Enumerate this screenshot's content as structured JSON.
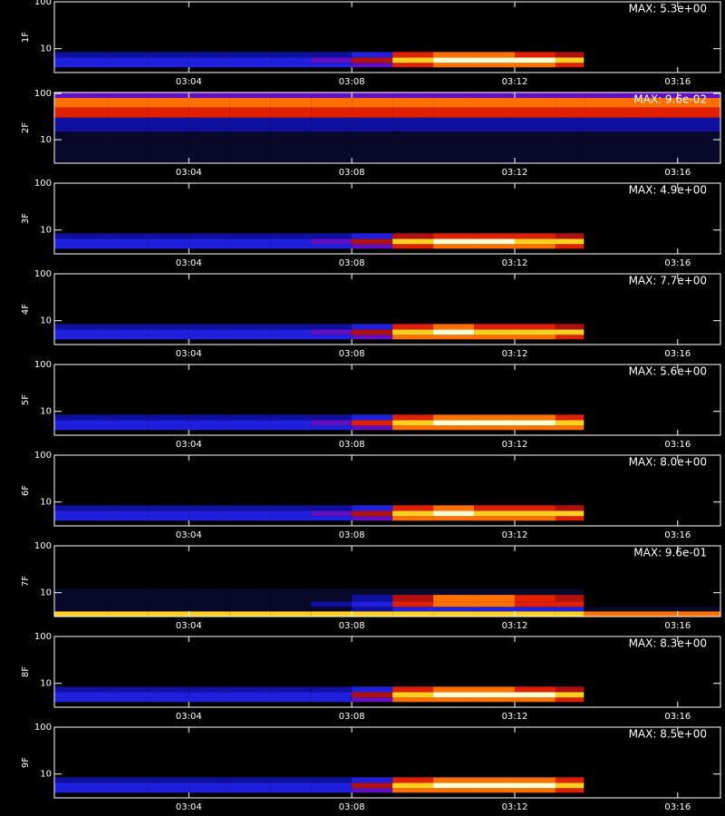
{
  "chart_data": [
    {
      "type": "heatmap",
      "ylabel": "1F",
      "annotation": "MAX: 5.3e+00",
      "log_y": true,
      "xlim": [
        0.7,
        17.05
      ],
      "xticks": [
        {
          "value": 4,
          "label": "03:04"
        },
        {
          "value": 8,
          "label": "03:08"
        },
        {
          "value": 12,
          "label": "03:12"
        },
        {
          "value": 16,
          "label": "03:16"
        }
      ],
      "ylim": [
        3.1,
        100
      ],
      "yticks": [
        10,
        100
      ],
      "xbins": [
        0.7,
        2,
        3,
        4,
        5,
        6,
        7,
        8,
        9,
        10,
        11,
        12,
        13,
        13.7,
        17.05
      ],
      "ybins": [
        4,
        5,
        6.5,
        8.5
      ],
      "values": [
        [
          3,
          3,
          3,
          3,
          3,
          3,
          3,
          4,
          6,
          7,
          7,
          7,
          6,
          0
        ],
        [
          3,
          3,
          3,
          3,
          3,
          3,
          4,
          5,
          8,
          9,
          9,
          9,
          8,
          0
        ],
        [
          2,
          2,
          2,
          2,
          2,
          2,
          2,
          3,
          6,
          7,
          7,
          6,
          5,
          0
        ]
      ],
      "zlim": [
        0,
        9
      ],
      "colormap": [
        "#000000",
        "#08082a",
        "#1010a0",
        "#2020e0",
        "#6010c0",
        "#b01010",
        "#e02000",
        "#ff7000",
        "#ffd020",
        "#ffffd0"
      ]
    },
    {
      "type": "heatmap",
      "ylabel": "2F",
      "annotation": "MAX: 9.6e-02",
      "log_y": true,
      "xlim": [
        0.7,
        17.05
      ],
      "xticks": [
        {
          "value": 4,
          "label": "03:04"
        },
        {
          "value": 8,
          "label": "03:08"
        },
        {
          "value": 12,
          "label": "03:12"
        },
        {
          "value": 16,
          "label": "03:16"
        }
      ],
      "ylim": [
        3.1,
        105
      ],
      "yticks": [
        10,
        100
      ],
      "xbins": [
        0.7,
        2,
        3,
        4,
        5,
        6,
        7,
        8,
        9,
        10,
        11,
        12,
        13,
        13.7,
        17.05
      ],
      "ybins": [
        3.1,
        15,
        30,
        50,
        80,
        105
      ],
      "values": [
        [
          1,
          1,
          1,
          1,
          1,
          1,
          1,
          1,
          1,
          1,
          1,
          1,
          1,
          1
        ],
        [
          2,
          2,
          2,
          2,
          2,
          2,
          2,
          2,
          2,
          2,
          2,
          2,
          2,
          2
        ],
        [
          6,
          6,
          6,
          6,
          6,
          6,
          6,
          6,
          6,
          6,
          6,
          6,
          6,
          6
        ],
        [
          7,
          7,
          7,
          7,
          7,
          7,
          7,
          7,
          7,
          7,
          7,
          7,
          7,
          7
        ],
        [
          4,
          4,
          4,
          4,
          4,
          4,
          4,
          4,
          4,
          4,
          4,
          4,
          4,
          4
        ]
      ],
      "zlim": [
        0,
        9
      ],
      "colormap": [
        "#000000",
        "#08082a",
        "#1010a0",
        "#2020e0",
        "#6010c0",
        "#b01010",
        "#e02000",
        "#ff7000",
        "#ffd020",
        "#ffffd0"
      ]
    },
    {
      "type": "heatmap",
      "ylabel": "3F",
      "annotation": "MAX: 4.9e+00",
      "log_y": true,
      "xlim": [
        0.7,
        17.05
      ],
      "xticks": [
        {
          "value": 4,
          "label": "03:04"
        },
        {
          "value": 8,
          "label": "03:08"
        },
        {
          "value": 12,
          "label": "03:12"
        },
        {
          "value": 16,
          "label": "03:16"
        }
      ],
      "ylim": [
        3.1,
        100
      ],
      "yticks": [
        10,
        100
      ],
      "xbins": [
        0.7,
        2,
        3,
        4,
        5,
        6,
        7,
        8,
        9,
        10,
        11,
        12,
        13,
        13.7,
        17.05
      ],
      "ybins": [
        4,
        5,
        6.5,
        8.5
      ],
      "values": [
        [
          3,
          3,
          3,
          3,
          3,
          3,
          3,
          4,
          6,
          7,
          7,
          7,
          6,
          0
        ],
        [
          3,
          3,
          3,
          3,
          3,
          3,
          4,
          5,
          8,
          9,
          9,
          8,
          8,
          0
        ],
        [
          2,
          2,
          2,
          2,
          2,
          2,
          2,
          3,
          5,
          6,
          6,
          6,
          5,
          0
        ]
      ],
      "zlim": [
        0,
        9
      ],
      "colormap": [
        "#000000",
        "#08082a",
        "#1010a0",
        "#2020e0",
        "#6010c0",
        "#b01010",
        "#e02000",
        "#ff7000",
        "#ffd020",
        "#ffffd0"
      ]
    },
    {
      "type": "heatmap",
      "ylabel": "4F",
      "annotation": "MAX: 7.7e+00",
      "log_y": true,
      "xlim": [
        0.7,
        17.05
      ],
      "xticks": [
        {
          "value": 4,
          "label": "03:04"
        },
        {
          "value": 8,
          "label": "03:08"
        },
        {
          "value": 12,
          "label": "03:12"
        },
        {
          "value": 16,
          "label": "03:16"
        }
      ],
      "ylim": [
        3.1,
        100
      ],
      "yticks": [
        10,
        100
      ],
      "xbins": [
        0.7,
        2,
        3,
        4,
        5,
        6,
        7,
        8,
        9,
        10,
        11,
        12,
        13,
        13.7,
        17.05
      ],
      "ybins": [
        4,
        5,
        6.5,
        8.5
      ],
      "values": [
        [
          3,
          3,
          3,
          3,
          3,
          3,
          3,
          4,
          7,
          7,
          7,
          7,
          6,
          0
        ],
        [
          3,
          3,
          3,
          3,
          3,
          3,
          4,
          5,
          8,
          9,
          8,
          8,
          8,
          0
        ],
        [
          2,
          2,
          2,
          2,
          2,
          2,
          2,
          3,
          6,
          7,
          6,
          6,
          5,
          0
        ]
      ],
      "zlim": [
        0,
        9
      ],
      "colormap": [
        "#000000",
        "#08082a",
        "#1010a0",
        "#2020e0",
        "#6010c0",
        "#b01010",
        "#e02000",
        "#ff7000",
        "#ffd020",
        "#ffffd0"
      ]
    },
    {
      "type": "heatmap",
      "ylabel": "5F",
      "annotation": "MAX: 5.6e+00",
      "log_y": true,
      "xlim": [
        0.7,
        17.05
      ],
      "xticks": [
        {
          "value": 4,
          "label": "03:04"
        },
        {
          "value": 8,
          "label": "03:08"
        },
        {
          "value": 12,
          "label": "03:12"
        },
        {
          "value": 16,
          "label": "03:16"
        }
      ],
      "ylim": [
        3.1,
        100
      ],
      "yticks": [
        10,
        100
      ],
      "xbins": [
        0.7,
        2,
        3,
        4,
        5,
        6,
        7,
        8,
        9,
        10,
        11,
        12,
        13,
        13.7,
        17.05
      ],
      "ybins": [
        4,
        5,
        6.5,
        8.5
      ],
      "values": [
        [
          3,
          3,
          3,
          3,
          3,
          3,
          3,
          4,
          7,
          7,
          7,
          7,
          7,
          0
        ],
        [
          3,
          3,
          3,
          3,
          3,
          3,
          4,
          6,
          8,
          9,
          9,
          9,
          8,
          0
        ],
        [
          2,
          2,
          2,
          2,
          2,
          2,
          2,
          3,
          6,
          7,
          7,
          7,
          6,
          0
        ]
      ],
      "zlim": [
        0,
        9
      ],
      "colormap": [
        "#000000",
        "#08082a",
        "#1010a0",
        "#2020e0",
        "#6010c0",
        "#b01010",
        "#e02000",
        "#ff7000",
        "#ffd020",
        "#ffffd0"
      ]
    },
    {
      "type": "heatmap",
      "ylabel": "6F",
      "annotation": "MAX: 8.0e+00",
      "log_y": true,
      "xlim": [
        0.7,
        17.05
      ],
      "xticks": [
        {
          "value": 4,
          "label": "03:04"
        },
        {
          "value": 8,
          "label": "03:08"
        },
        {
          "value": 12,
          "label": "03:12"
        },
        {
          "value": 16,
          "label": "03:16"
        }
      ],
      "ylim": [
        3.1,
        100
      ],
      "yticks": [
        10,
        100
      ],
      "xbins": [
        0.7,
        2,
        3,
        4,
        5,
        6,
        7,
        8,
        9,
        10,
        11,
        12,
        13,
        13.7,
        17.05
      ],
      "ybins": [
        4,
        5,
        6.5,
        8.5
      ],
      "values": [
        [
          3,
          3,
          3,
          3,
          3,
          3,
          3,
          4,
          7,
          7,
          7,
          7,
          6,
          0
        ],
        [
          3,
          3,
          3,
          3,
          3,
          3,
          4,
          5,
          8,
          9,
          8,
          8,
          8,
          0
        ],
        [
          2,
          2,
          2,
          2,
          2,
          2,
          2,
          3,
          6,
          7,
          6,
          6,
          5,
          0
        ]
      ],
      "zlim": [
        0,
        9
      ],
      "colormap": [
        "#000000",
        "#08082a",
        "#1010a0",
        "#2020e0",
        "#6010c0",
        "#b01010",
        "#e02000",
        "#ff7000",
        "#ffd020",
        "#ffffd0"
      ]
    },
    {
      "type": "heatmap",
      "ylabel": "7F",
      "annotation": "MAX: 9.6e-01",
      "log_y": true,
      "xlim": [
        0.7,
        17.05
      ],
      "xticks": [
        {
          "value": 4,
          "label": "03:04"
        },
        {
          "value": 8,
          "label": "03:08"
        },
        {
          "value": 12,
          "label": "03:12"
        },
        {
          "value": 16,
          "label": "03:16"
        }
      ],
      "ylim": [
        3.1,
        100
      ],
      "yticks": [
        10,
        100
      ],
      "xbins": [
        0.7,
        2,
        3,
        4,
        5,
        6,
        7,
        8,
        9,
        10,
        11,
        12,
        13,
        13.7,
        17.05
      ],
      "ybins": [
        3.1,
        4,
        5,
        6.5,
        9,
        12
      ],
      "values": [
        [
          8,
          8,
          8,
          8,
          8,
          8,
          8,
          8,
          8,
          8,
          8,
          8,
          8,
          7
        ],
        [
          1,
          1,
          1,
          1,
          1,
          1,
          1,
          2,
          3,
          3,
          3,
          3,
          3,
          1
        ],
        [
          1,
          1,
          1,
          1,
          1,
          1,
          2,
          3,
          6,
          7,
          7,
          6,
          6,
          0
        ],
        [
          1,
          1,
          1,
          1,
          1,
          1,
          1,
          2,
          5,
          7,
          7,
          6,
          5,
          0
        ],
        [
          1,
          1,
          1,
          1,
          1,
          1,
          1,
          1,
          1,
          1,
          1,
          1,
          1,
          0
        ]
      ],
      "zlim": [
        0,
        9
      ],
      "colormap": [
        "#000000",
        "#08082a",
        "#1010a0",
        "#2020e0",
        "#6010c0",
        "#b01010",
        "#e02000",
        "#ff7000",
        "#ffd020",
        "#ffffd0"
      ]
    },
    {
      "type": "heatmap",
      "ylabel": "8F",
      "annotation": "MAX: 8.3e+00",
      "log_y": true,
      "xlim": [
        0.7,
        17.05
      ],
      "xticks": [
        {
          "value": 4,
          "label": "03:04"
        },
        {
          "value": 8,
          "label": "03:08"
        },
        {
          "value": 12,
          "label": "03:12"
        },
        {
          "value": 16,
          "label": "03:16"
        }
      ],
      "ylim": [
        3.1,
        100
      ],
      "yticks": [
        10,
        100
      ],
      "xbins": [
        0.7,
        2,
        3,
        4,
        5,
        6,
        7,
        8,
        9,
        10,
        11,
        12,
        13,
        13.7,
        17.05
      ],
      "ybins": [
        4,
        5,
        6.5,
        8.5
      ],
      "values": [
        [
          3,
          3,
          3,
          3,
          3,
          3,
          3,
          4,
          7,
          7,
          7,
          7,
          6,
          0
        ],
        [
          3,
          3,
          3,
          3,
          3,
          3,
          3,
          5,
          8,
          9,
          9,
          9,
          8,
          0
        ],
        [
          2,
          2,
          2,
          2,
          2,
          2,
          2,
          3,
          6,
          7,
          7,
          6,
          5,
          0
        ]
      ],
      "zlim": [
        0,
        9
      ],
      "colormap": [
        "#000000",
        "#08082a",
        "#1010a0",
        "#2020e0",
        "#6010c0",
        "#b01010",
        "#e02000",
        "#ff7000",
        "#ffd020",
        "#ffffd0"
      ]
    },
    {
      "type": "heatmap",
      "ylabel": "9F",
      "annotation": "MAX: 8.5e+00",
      "log_y": true,
      "xlim": [
        0.7,
        17.05
      ],
      "xticks": [
        {
          "value": 4,
          "label": "03:04"
        },
        {
          "value": 8,
          "label": "03:08"
        },
        {
          "value": 12,
          "label": "03:12"
        },
        {
          "value": 16,
          "label": "03:16"
        }
      ],
      "ylim": [
        3.1,
        100
      ],
      "yticks": [
        10,
        100
      ],
      "xbins": [
        0.7,
        2,
        3,
        4,
        5,
        6,
        7,
        8,
        9,
        10,
        11,
        12,
        13,
        13.7,
        17.05
      ],
      "ybins": [
        4,
        5,
        6.5,
        8.5
      ],
      "values": [
        [
          3,
          3,
          3,
          3,
          3,
          3,
          3,
          4,
          7,
          7,
          7,
          7,
          6,
          0
        ],
        [
          3,
          3,
          3,
          3,
          3,
          3,
          3,
          5,
          8,
          9,
          9,
          9,
          8,
          0
        ],
        [
          2,
          2,
          2,
          2,
          2,
          2,
          2,
          3,
          6,
          7,
          7,
          7,
          6,
          0
        ]
      ],
      "zlim": [
        0,
        9
      ],
      "colormap": [
        "#000000",
        "#08082a",
        "#1010a0",
        "#2020e0",
        "#6010c0",
        "#b01010",
        "#e02000",
        "#ff7000",
        "#ffd020",
        "#ffffd0"
      ]
    }
  ]
}
